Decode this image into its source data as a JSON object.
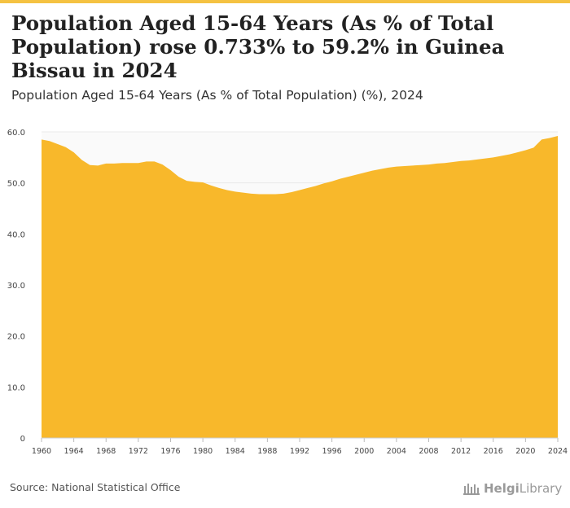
{
  "header": {
    "title": "Population Aged 15-64 Years (As % of Total Population) rose 0.733% to 59.2% in Guinea Bissau in 2024",
    "subtitle": "Population Aged 15-64 Years (As % of Total Population) (%), 2024"
  },
  "footer": {
    "source": "Source: National Statistical Office",
    "brand_bold": "Helgi",
    "brand_rest": "Library"
  },
  "colors": {
    "area": "#f8b82b",
    "accent": "#f5c242",
    "grid": "#e9e9e9",
    "axis_text": "#444444"
  },
  "chart_data": {
    "type": "area",
    "title": "Population Aged 15-64 Years (As % of Total Population) (%), 2024",
    "xlabel": "",
    "ylabel": "%",
    "xlim": [
      1960,
      2024
    ],
    "ylim": [
      0,
      60
    ],
    "y_ticks": [
      0,
      10,
      20,
      30,
      40,
      50,
      60
    ],
    "y_tick_labels": [
      "0",
      "10.0",
      "20.0",
      "30.0",
      "40.0",
      "50.0",
      "60.0"
    ],
    "x_ticks": [
      1960,
      1964,
      1968,
      1972,
      1976,
      1980,
      1984,
      1988,
      1992,
      1996,
      2000,
      2004,
      2008,
      2012,
      2016,
      2020,
      2024
    ],
    "grid": true,
    "series": [
      {
        "name": "Guinea Bissau",
        "x": [
          1960,
          1961,
          1962,
          1963,
          1964,
          1965,
          1966,
          1967,
          1968,
          1969,
          1970,
          1971,
          1972,
          1973,
          1974,
          1975,
          1976,
          1977,
          1978,
          1979,
          1980,
          1981,
          1982,
          1983,
          1984,
          1985,
          1986,
          1987,
          1988,
          1989,
          1990,
          1991,
          1992,
          1993,
          1994,
          1995,
          1996,
          1997,
          1998,
          1999,
          2000,
          2001,
          2002,
          2003,
          2004,
          2005,
          2006,
          2007,
          2008,
          2009,
          2010,
          2011,
          2012,
          2013,
          2014,
          2015,
          2016,
          2017,
          2018,
          2019,
          2020,
          2021,
          2022,
          2023,
          2024
        ],
        "values": [
          58.5,
          58.2,
          57.6,
          57.0,
          56.0,
          54.5,
          53.5,
          53.4,
          53.8,
          53.8,
          53.9,
          53.9,
          53.9,
          54.2,
          54.2,
          53.6,
          52.5,
          51.2,
          50.4,
          50.2,
          50.1,
          49.5,
          49.0,
          48.6,
          48.3,
          48.1,
          47.9,
          47.8,
          47.8,
          47.8,
          47.9,
          48.2,
          48.6,
          49.0,
          49.4,
          49.9,
          50.3,
          50.8,
          51.2,
          51.6,
          52.0,
          52.4,
          52.7,
          53.0,
          53.2,
          53.3,
          53.4,
          53.5,
          53.6,
          53.8,
          53.9,
          54.1,
          54.3,
          54.4,
          54.6,
          54.8,
          55.0,
          55.3,
          55.6,
          56.0,
          56.4,
          56.9,
          58.5,
          58.8,
          59.2
        ]
      }
    ]
  }
}
